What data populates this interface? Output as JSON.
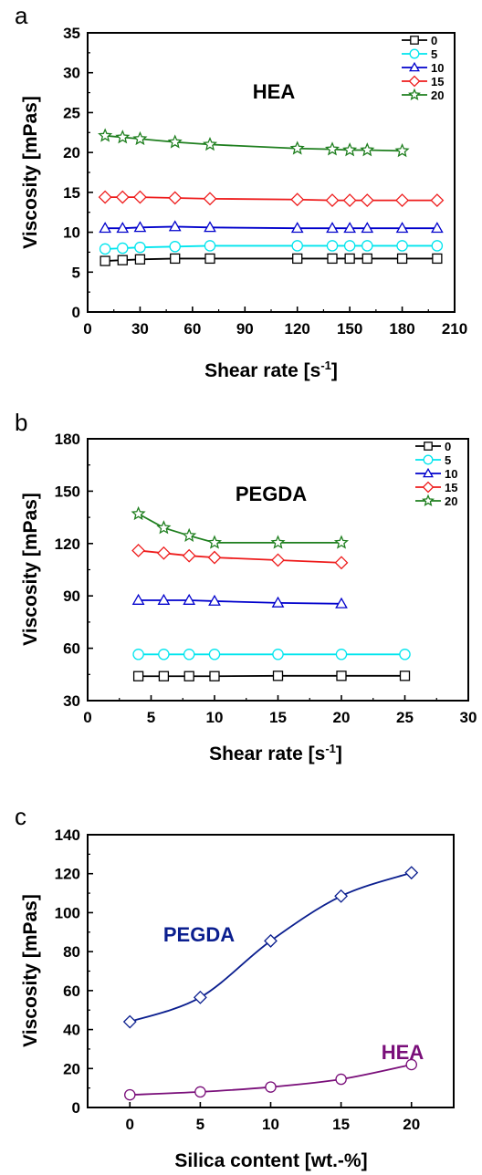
{
  "panels": [
    {
      "letter": "a",
      "title": "HEA",
      "xlabel": "Shear rate [s",
      "xlabel_sup": "-1",
      "xlabel_end": "]",
      "ylabel": "Viscosity [mPas]",
      "xticks": [
        "0",
        "30",
        "60",
        "90",
        "120",
        "150",
        "180",
        "210"
      ],
      "yticks": [
        "0",
        "5",
        "10",
        "15",
        "20",
        "25",
        "30",
        "35"
      ]
    },
    {
      "letter": "b",
      "title": "PEGDA",
      "xlabel": "Shear rate [s",
      "xlabel_sup": "-1",
      "xlabel_end": "]",
      "ylabel": "Viscosity [mPas]",
      "xticks": [
        "0",
        "5",
        "10",
        "15",
        "20",
        "25",
        "30"
      ],
      "yticks": [
        "30",
        "60",
        "90",
        "120",
        "150",
        "180"
      ]
    },
    {
      "letter": "c",
      "xlabel": "Silica content [wt.-%]",
      "ylabel": "Viscosity [mPas]",
      "xticks": [
        "0",
        "5",
        "10",
        "15",
        "20"
      ],
      "yticks": [
        "0",
        "20",
        "40",
        "60",
        "80",
        "100",
        "120",
        "140"
      ],
      "annotations": [
        "PEGDA",
        "HEA"
      ]
    }
  ],
  "chart_data": [
    {
      "type": "line",
      "title": "HEA",
      "xlabel": "Shear rate [s-1]",
      "ylabel": "Viscosity [mPas]",
      "xlim": [
        0,
        210
      ],
      "ylim": [
        0,
        35
      ],
      "grid": false,
      "legend": "top-right",
      "series": [
        {
          "name": "0",
          "color": "#000000",
          "marker": "square",
          "x": [
            10,
            20,
            30,
            50,
            70,
            120,
            140,
            150,
            160,
            180,
            200
          ],
          "y": [
            6.4,
            6.5,
            6.6,
            6.7,
            6.7,
            6.7,
            6.7,
            6.7,
            6.7,
            6.7,
            6.7
          ]
        },
        {
          "name": "5",
          "color": "#00e5ee",
          "marker": "circle",
          "x": [
            10,
            20,
            30,
            50,
            70,
            120,
            140,
            150,
            160,
            180,
            200
          ],
          "y": [
            7.9,
            8.0,
            8.1,
            8.2,
            8.3,
            8.3,
            8.3,
            8.3,
            8.3,
            8.3,
            8.3
          ]
        },
        {
          "name": "10",
          "color": "#0000cc",
          "marker": "triangle",
          "x": [
            10,
            20,
            30,
            50,
            70,
            120,
            140,
            150,
            160,
            180,
            200
          ],
          "y": [
            10.5,
            10.5,
            10.6,
            10.7,
            10.6,
            10.5,
            10.5,
            10.5,
            10.5,
            10.5,
            10.5
          ]
        },
        {
          "name": "15",
          "color": "#ee1c1c",
          "marker": "diamond",
          "x": [
            10,
            20,
            30,
            50,
            70,
            120,
            140,
            150,
            160,
            180,
            200
          ],
          "y": [
            14.4,
            14.4,
            14.4,
            14.3,
            14.2,
            14.1,
            14.0,
            14.0,
            14.0,
            14.0,
            14.0
          ]
        },
        {
          "name": "20",
          "color": "#1f7f1f",
          "marker": "star",
          "x": [
            10,
            20,
            30,
            50,
            70,
            120,
            140,
            150,
            160,
            180
          ],
          "y": [
            22.1,
            21.9,
            21.7,
            21.3,
            21.0,
            20.5,
            20.4,
            20.3,
            20.3,
            20.2
          ]
        }
      ]
    },
    {
      "type": "line",
      "title": "PEGDA",
      "xlabel": "Shear rate [s-1]",
      "ylabel": "Viscosity [mPas]",
      "xlim": [
        0,
        30
      ],
      "ylim": [
        30,
        180
      ],
      "grid": false,
      "legend": "top-right",
      "series": [
        {
          "name": "0",
          "color": "#000000",
          "marker": "square",
          "x": [
            4,
            6,
            8,
            10,
            15,
            20,
            25
          ],
          "y": [
            44,
            44,
            44,
            44,
            44.2,
            44.2,
            44.2
          ]
        },
        {
          "name": "5",
          "color": "#00e5ee",
          "marker": "circle",
          "x": [
            4,
            6,
            8,
            10,
            15,
            20,
            25
          ],
          "y": [
            56.5,
            56.5,
            56.5,
            56.5,
            56.5,
            56.5,
            56.5
          ]
        },
        {
          "name": "10",
          "color": "#0000cc",
          "marker": "triangle",
          "x": [
            4,
            6,
            8,
            10,
            15,
            20
          ],
          "y": [
            87.5,
            87.5,
            87.5,
            87,
            86,
            85.5
          ]
        },
        {
          "name": "15",
          "color": "#ee1c1c",
          "marker": "diamond",
          "x": [
            4,
            6,
            8,
            10,
            15,
            20
          ],
          "y": [
            116,
            114.5,
            113,
            112,
            110.5,
            109
          ]
        },
        {
          "name": "20",
          "color": "#1f7f1f",
          "marker": "star",
          "x": [
            4,
            6,
            8,
            10,
            15,
            20
          ],
          "y": [
            137,
            129,
            124.5,
            120.5,
            120.5,
            120.5
          ]
        }
      ]
    },
    {
      "type": "line",
      "xlabel": "Silica content [wt.-%]",
      "ylabel": "Viscosity [mPas]",
      "xlim": [
        -3,
        23
      ],
      "ylim": [
        0,
        140
      ],
      "grid": false,
      "series": [
        {
          "name": "PEGDA",
          "color": "#0b1f8f",
          "marker": "diamond",
          "x": [
            0,
            5,
            10,
            15,
            20
          ],
          "y": [
            44,
            56.5,
            85.5,
            108.5,
            120.5
          ]
        },
        {
          "name": "HEA",
          "color": "#7a0f7a",
          "marker": "circle",
          "x": [
            0,
            5,
            10,
            15,
            20
          ],
          "y": [
            6.5,
            8,
            10.5,
            14.5,
            22
          ]
        }
      ]
    }
  ]
}
